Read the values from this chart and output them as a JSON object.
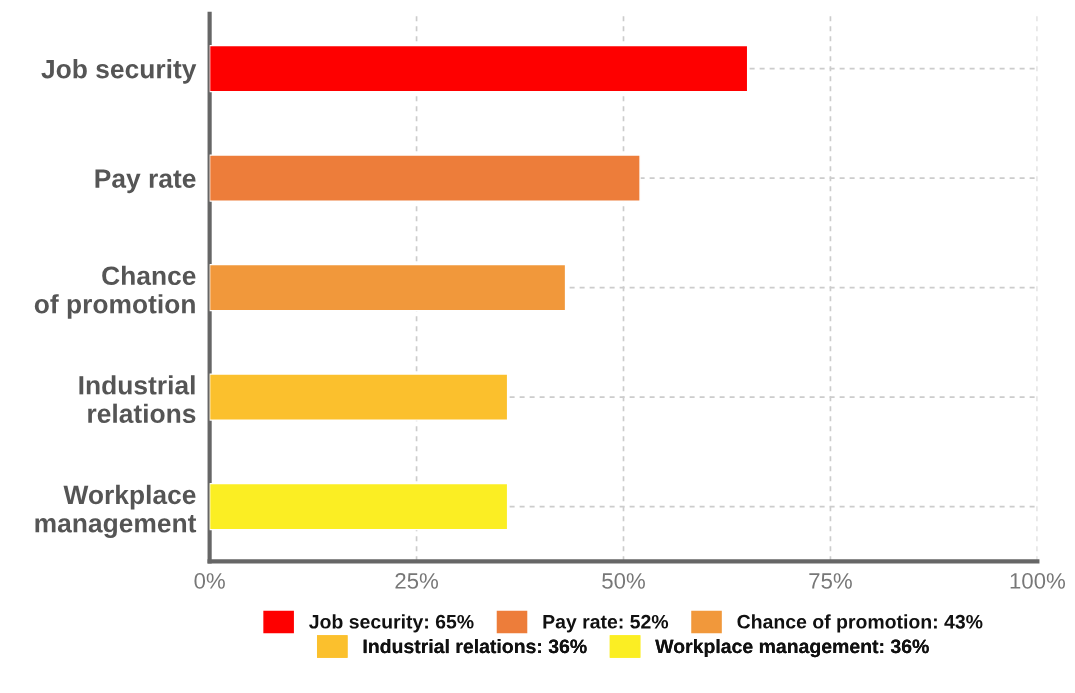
{
  "chart_data": {
    "type": "bar",
    "orientation": "horizontal",
    "categories": [
      "Job security",
      "Pay rate",
      "Chance of promotion",
      "Industrial relations",
      "Workplace management"
    ],
    "series": [
      {
        "name": "Job security: 65%",
        "color": "#fe0000",
        "values": [
          65,
          null,
          null,
          null,
          null
        ]
      },
      {
        "name": "Pay rate: 52%",
        "color": "#ed7d3a",
        "values": [
          null,
          52,
          null,
          null,
          null
        ]
      },
      {
        "name": "Chance of promotion: 43%",
        "color": "#f1983b",
        "values": [
          null,
          null,
          43,
          null,
          null
        ]
      },
      {
        "name": "Industrial relations: 36%",
        "color": "#fbc02d",
        "values": [
          null,
          null,
          null,
          36,
          null
        ]
      },
      {
        "name": "Workplace management: 36%",
        "color": "#fbee23",
        "values": [
          null,
          null,
          null,
          null,
          36
        ]
      }
    ],
    "xlim": [
      0,
      100
    ],
    "xticks": [
      {
        "value": 0,
        "label": "0%"
      },
      {
        "value": 25,
        "label": "25%"
      },
      {
        "value": 50,
        "label": "50%"
      },
      {
        "value": 75,
        "label": "75%"
      },
      {
        "value": 100,
        "label": "100%"
      }
    ],
    "grid": true,
    "legend": "bottom"
  }
}
